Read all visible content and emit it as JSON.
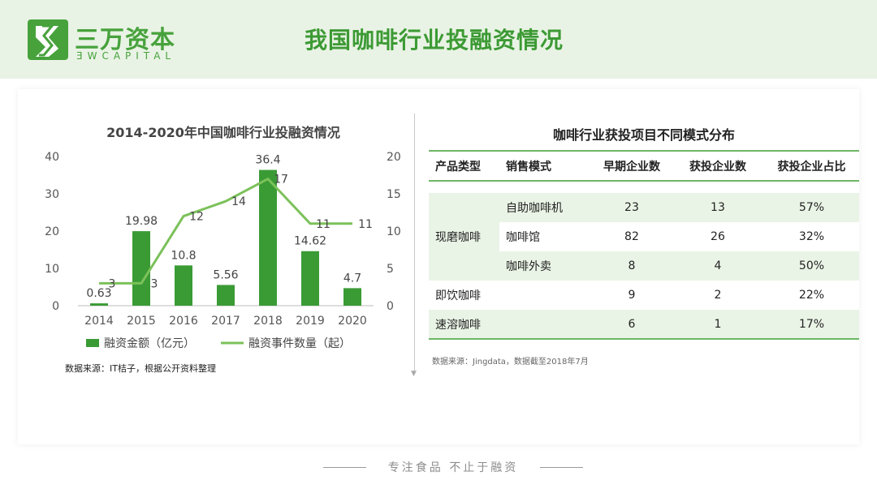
{
  "header": {
    "brand_cn": "三万资本",
    "brand_en": "ƎWCAPITAL",
    "page_title": "我国咖啡行业投融资情况"
  },
  "colors": {
    "brand_green": "#47a23c",
    "bar": "#3a9b35",
    "line": "#7cc15a",
    "header_bg": "#e9f3e5"
  },
  "chart_data": {
    "type": "bar",
    "title": "2014-2020年中国咖啡行业投融资情况",
    "categories": [
      "2014",
      "2015",
      "2016",
      "2017",
      "2018",
      "2019",
      "2020"
    ],
    "series": [
      {
        "name": "融资金额（亿元）",
        "type": "bar",
        "axis": "left",
        "values": [
          0.63,
          19.98,
          10.8,
          5.56,
          36.4,
          14.62,
          4.7
        ]
      },
      {
        "name": "融资事件数量（起）",
        "type": "line",
        "axis": "right",
        "values": [
          3,
          3,
          12,
          14,
          17,
          11,
          11
        ]
      }
    ],
    "ylim_left": [
      0,
      40
    ],
    "yticks_left": [
      "0",
      "10",
      "20",
      "30",
      "40"
    ],
    "ylim_right": [
      0,
      20
    ],
    "yticks_right": [
      "0",
      "5",
      "10",
      "15",
      "20"
    ],
    "grid": false,
    "legend": "bottom"
  },
  "chart_note": "数据来源：IT桔子，根据公开资料整理",
  "table": {
    "title": "咖啡行业获投项目不同模式分布",
    "headers": [
      "产品类型",
      "销售模式",
      "早期企业数",
      "获投企业数",
      "获投企业占比"
    ],
    "groups": [
      {
        "type": "现磨咖啡",
        "rows": [
          {
            "mode": "自助咖啡机",
            "early": "23",
            "funded": "13",
            "ratio": "57%"
          },
          {
            "mode": "咖啡馆",
            "early": "82",
            "funded": "26",
            "ratio": "32%"
          },
          {
            "mode": "咖啡外卖",
            "early": "8",
            "funded": "4",
            "ratio": "50%"
          }
        ]
      },
      {
        "type": "即饮咖啡",
        "rows": [
          {
            "mode": "",
            "early": "9",
            "funded": "2",
            "ratio": "22%"
          }
        ]
      },
      {
        "type": "速溶咖啡",
        "rows": [
          {
            "mode": "",
            "early": "6",
            "funded": "1",
            "ratio": "17%"
          }
        ]
      }
    ]
  },
  "table_note": "数据来源：Jingdata，数据截至2018年7月",
  "footer": {
    "slogan": "专注食品  不止于融资"
  }
}
